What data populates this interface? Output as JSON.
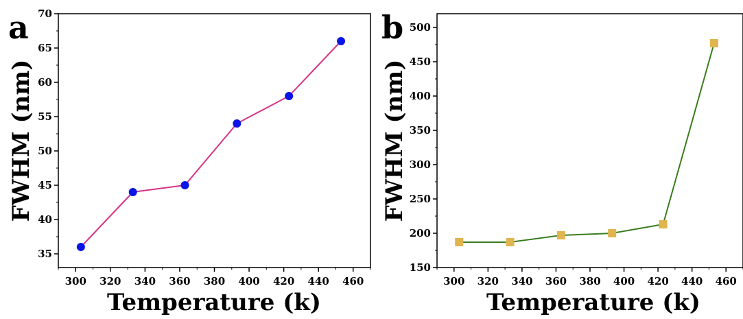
{
  "chart_data": [
    {
      "type": "line",
      "panel_label": "a",
      "xlabel": "Temperature (k)",
      "ylabel": "FWHM (nm)",
      "xlim": [
        290,
        470
      ],
      "ylim": [
        33,
        70
      ],
      "xticks": [
        300,
        320,
        340,
        360,
        380,
        400,
        420,
        440,
        460
      ],
      "yticks": [
        35,
        40,
        45,
        50,
        55,
        60,
        65,
        70
      ],
      "series": [
        {
          "x": [
            303,
            333,
            363,
            393,
            423,
            453
          ],
          "values": [
            36,
            44,
            45,
            54,
            58,
            66
          ],
          "line_color": "#d63384",
          "marker_color": "#0a14e6",
          "marker": "circle"
        }
      ]
    },
    {
      "type": "line",
      "panel_label": "b",
      "xlabel": "Temperature (k)",
      "ylabel": "FWHM (nm)",
      "xlim": [
        290,
        470
      ],
      "ylim": [
        150,
        520
      ],
      "xticks": [
        300,
        320,
        340,
        360,
        380,
        400,
        420,
        440,
        460
      ],
      "yticks": [
        150,
        200,
        250,
        300,
        350,
        400,
        450,
        500
      ],
      "series": [
        {
          "x": [
            303,
            333,
            363,
            393,
            423,
            453
          ],
          "values": [
            187,
            187,
            197,
            200,
            213,
            477
          ],
          "line_color": "#3a7d1e",
          "marker_color": "#e0b44e",
          "marker": "square"
        }
      ]
    }
  ]
}
